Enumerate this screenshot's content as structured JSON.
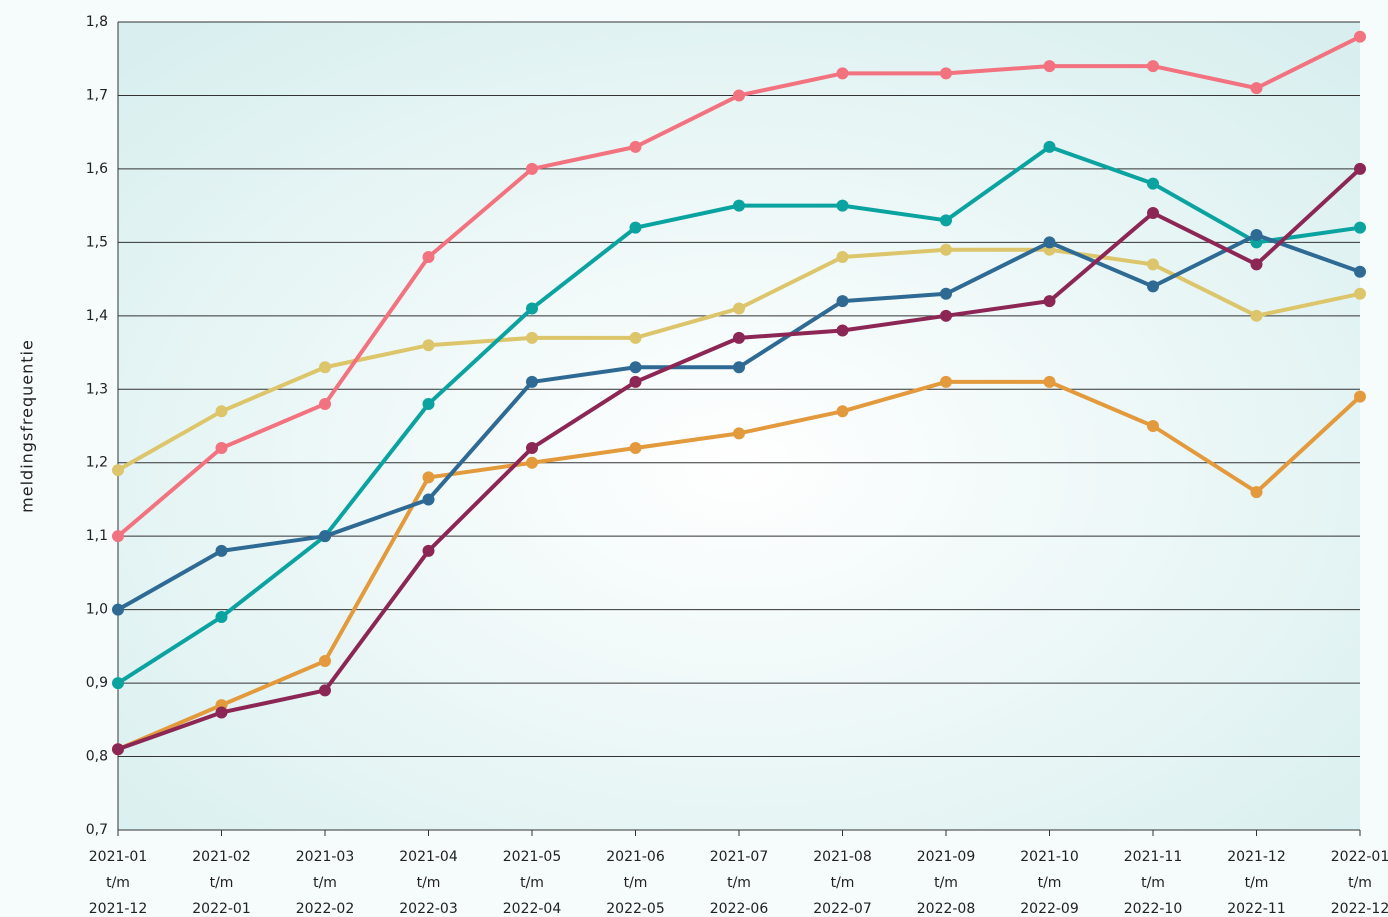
{
  "chart_data": {
    "type": "line",
    "y_label": "meldingsfrequentie",
    "categories": [
      [
        "2021-01",
        "t/m",
        "2021-12"
      ],
      [
        "2021-02",
        "t/m",
        "2022-01"
      ],
      [
        "2021-03",
        "t/m",
        "2022-02"
      ],
      [
        "2021-04",
        "t/m",
        "2022-03"
      ],
      [
        "2021-05",
        "t/m",
        "2022-04"
      ],
      [
        "2021-06",
        "t/m",
        "2022-05"
      ],
      [
        "2021-07",
        "t/m",
        "2022-06"
      ],
      [
        "2021-08",
        "t/m",
        "2022-07"
      ],
      [
        "2021-09",
        "t/m",
        "2022-08"
      ],
      [
        "2021-10",
        "t/m",
        "2022-09"
      ],
      [
        "2021-11",
        "t/m",
        "2022-10"
      ],
      [
        "2021-12",
        "t/m",
        "2022-11"
      ],
      [
        "2022-01",
        "t/m",
        "2022-12"
      ]
    ],
    "series": [
      {
        "color": "#dcc56a",
        "values": [
          1.19,
          1.27,
          1.33,
          1.36,
          1.37,
          1.37,
          1.41,
          1.48,
          1.49,
          1.49,
          1.47,
          1.4,
          1.43
        ]
      },
      {
        "color": "#f2727f",
        "values": [
          1.1,
          1.22,
          1.28,
          1.48,
          1.6,
          1.63,
          1.7,
          1.73,
          1.73,
          1.74,
          1.74,
          1.71,
          1.78
        ]
      },
      {
        "color": "#0aa3a0",
        "values": [
          0.9,
          0.99,
          1.1,
          1.28,
          1.41,
          1.52,
          1.55,
          1.55,
          1.53,
          1.63,
          1.58,
          1.5,
          1.52
        ]
      },
      {
        "color": "#e39a3c",
        "values": [
          0.81,
          0.87,
          0.93,
          1.18,
          1.2,
          1.22,
          1.24,
          1.27,
          1.31,
          1.31,
          1.25,
          1.16,
          1.29
        ]
      },
      {
        "color": "#2e6a93",
        "values": [
          1.0,
          1.08,
          1.1,
          1.15,
          1.31,
          1.33,
          1.33,
          1.42,
          1.43,
          1.5,
          1.44,
          1.51,
          1.46
        ]
      },
      {
        "color": "#8c2655",
        "values": [
          0.81,
          0.86,
          0.89,
          1.08,
          1.22,
          1.31,
          1.37,
          1.38,
          1.4,
          1.42,
          1.54,
          1.47,
          1.6
        ]
      }
    ],
    "ylim": [
      0.7,
      1.8
    ],
    "yticks": [
      {
        "value": 0.7,
        "label": "0,7"
      },
      {
        "value": 0.8,
        "label": "0,8"
      },
      {
        "value": 0.9,
        "label": "0,9"
      },
      {
        "value": 1.0,
        "label": "1,0"
      },
      {
        "value": 1.1,
        "label": "1,1"
      },
      {
        "value": 1.2,
        "label": "1,2"
      },
      {
        "value": 1.3,
        "label": "1,3"
      },
      {
        "value": 1.4,
        "label": "1,4"
      },
      {
        "value": 1.5,
        "label": "1,5"
      },
      {
        "value": 1.6,
        "label": "1,6"
      },
      {
        "value": 1.7,
        "label": "1,7"
      },
      {
        "value": 1.8,
        "label": "1,8"
      }
    ],
    "grid": true
  }
}
